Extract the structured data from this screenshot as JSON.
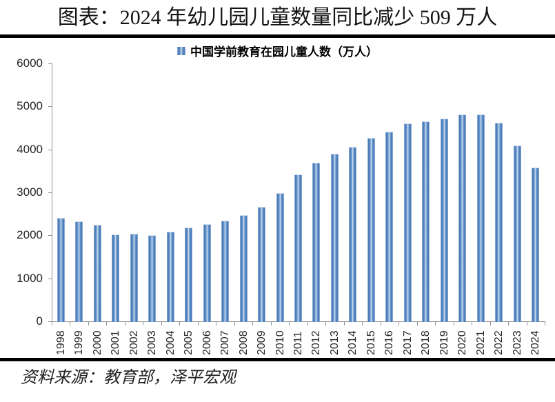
{
  "header": {
    "title": "图表：2024 年幼儿园儿童数量同比减少 509 万人"
  },
  "legend": {
    "label": "中国学前教育在园儿童人数（万人）"
  },
  "footer": {
    "source": "资料来源：教育部，泽平宏观"
  },
  "colors": {
    "bar_edge_light": "#a7c2e2",
    "bar_dark": "#3c70b0",
    "bar_mid": "#7ea7d6",
    "bar_center_light": "#d8e3f1",
    "axis": "#8f8f8f",
    "tick_label": "#262626",
    "divider": "#000000"
  },
  "chart_data": {
    "type": "bar",
    "title": "",
    "legend_entries": [
      "中国学前教育在园儿童人数（万人）"
    ],
    "categories": [
      "1998",
      "1999",
      "2000",
      "2001",
      "2002",
      "2003",
      "2004",
      "2005",
      "2006",
      "2007",
      "2008",
      "2009",
      "2010",
      "2011",
      "2012",
      "2013",
      "2014",
      "2015",
      "2016",
      "2017",
      "2018",
      "2019",
      "2020",
      "2021",
      "2022",
      "2023",
      "2024"
    ],
    "values": [
      2403,
      2326,
      2244,
      2022,
      2036,
      2004,
      2089,
      2179,
      2264,
      2349,
      2475,
      2658,
      2977,
      3424,
      3686,
      3895,
      4051,
      4265,
      4414,
      4600,
      4656,
      4714,
      4818,
      4805,
      4628,
      4093,
      3584
    ],
    "xlabel": "",
    "ylabel": "",
    "ylim": [
      0,
      6000
    ],
    "yticks": [
      0,
      1000,
      2000,
      3000,
      4000,
      5000,
      6000
    ],
    "grid": false,
    "legend_position": "top-center",
    "x_tick_label_rotation_deg": 90
  }
}
